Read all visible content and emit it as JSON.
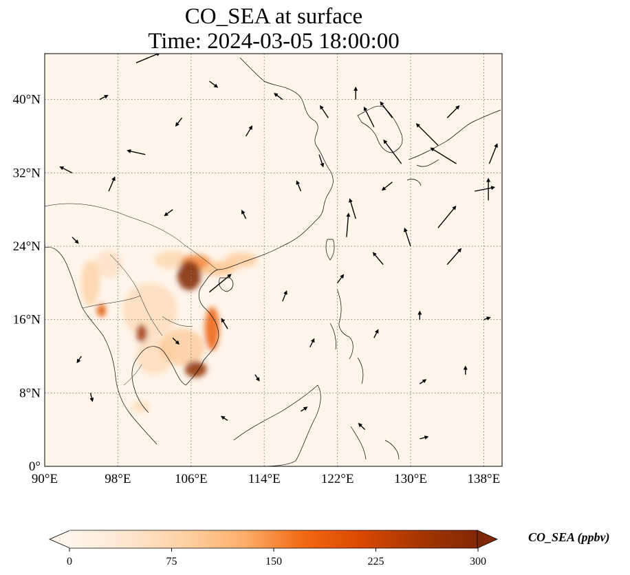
{
  "title": {
    "line1": "CO_SEA at surface",
    "line2": "Time: 2024-03-05 18:00:00"
  },
  "map": {
    "lon_range": [
      90,
      140
    ],
    "lat_range": [
      0,
      45
    ],
    "background": "#fff5ea",
    "coast_color": "#000000",
    "grid_color": "#808080",
    "x_ticks": [
      "90°E",
      "98°E",
      "106°E",
      "114°E",
      "122°E",
      "130°E",
      "138°E"
    ],
    "y_ticks": [
      "0°",
      "8°N",
      "16°N",
      "24°N",
      "32°N",
      "40°N"
    ],
    "x_tick_values": [
      90,
      98,
      106,
      114,
      122,
      130,
      138
    ],
    "y_tick_values": [
      0,
      8,
      16,
      24,
      32,
      40
    ],
    "hotspots": [
      {
        "lon": 105.8,
        "lat": 20.8,
        "rx": 1.3,
        "ry": 1.6,
        "level": 300
      },
      {
        "lon": 106.5,
        "lat": 22.3,
        "rx": 1.6,
        "ry": 0.8,
        "level": 150
      },
      {
        "lon": 108.5,
        "lat": 21.6,
        "rx": 2.5,
        "ry": 0.8,
        "level": 100
      },
      {
        "lon": 111.5,
        "lat": 22.5,
        "rx": 1.8,
        "ry": 0.8,
        "level": 90
      },
      {
        "lon": 106.5,
        "lat": 10.6,
        "rx": 1.2,
        "ry": 0.9,
        "level": 280
      },
      {
        "lon": 108.3,
        "lat": 15.0,
        "rx": 0.8,
        "ry": 2.4,
        "level": 180
      },
      {
        "lon": 105.0,
        "lat": 13.0,
        "rx": 2.5,
        "ry": 2.0,
        "level": 90
      },
      {
        "lon": 100.6,
        "lat": 14.5,
        "rx": 0.6,
        "ry": 1.0,
        "level": 260
      },
      {
        "lon": 96.2,
        "lat": 17.0,
        "rx": 0.5,
        "ry": 0.7,
        "level": 200
      },
      {
        "lon": 95.0,
        "lat": 20.0,
        "rx": 1.0,
        "ry": 2.5,
        "level": 80
      },
      {
        "lon": 101.5,
        "lat": 17.0,
        "rx": 3.0,
        "ry": 3.0,
        "level": 60
      },
      {
        "lon": 102.0,
        "lat": 12.0,
        "rx": 2.0,
        "ry": 2.0,
        "level": 60
      },
      {
        "lon": 104.0,
        "lat": 22.5,
        "rx": 2.0,
        "ry": 1.0,
        "level": 70
      },
      {
        "lon": 100.5,
        "lat": 6.5,
        "rx": 1.0,
        "ry": 0.6,
        "level": 60
      },
      {
        "lon": 97.0,
        "lat": 22.0,
        "rx": 1.5,
        "ry": 1.5,
        "level": 50
      }
    ],
    "wind_vectors": [
      [
        100,
        44,
        2.4,
        1.0
      ],
      [
        108,
        42,
        0.8,
        -0.6
      ],
      [
        124,
        40,
        0.0,
        1.2
      ],
      [
        126,
        37,
        -1.0,
        2.0
      ],
      [
        129,
        33,
        -1.8,
        2.4
      ],
      [
        133,
        35,
        -2.2,
        2.2
      ],
      [
        135,
        33,
        -2.6,
        1.6
      ],
      [
        137,
        30,
        2.0,
        0.4
      ],
      [
        138.6,
        33,
        0.8,
        2.0
      ],
      [
        138.5,
        29,
        0.0,
        2.2
      ],
      [
        124,
        27,
        -0.6,
        2.0
      ],
      [
        123,
        25,
        0.2,
        2.4
      ],
      [
        127,
        22,
        -1.0,
        1.2
      ],
      [
        130,
        24,
        -0.6,
        1.8
      ],
      [
        133,
        26,
        1.8,
        2.2
      ],
      [
        134,
        22,
        1.4,
        1.6
      ],
      [
        108,
        19,
        2.2,
        1.8
      ],
      [
        101,
        34,
        -1.8,
        0.4
      ],
      [
        97,
        30,
        0.6,
        1.4
      ],
      [
        93,
        32,
        -1.2,
        0.6
      ],
      [
        118,
        30,
        -0.4,
        1.0
      ],
      [
        112,
        36,
        0.6,
        1.0
      ],
      [
        116,
        18,
        0.4,
        1.0
      ],
      [
        119,
        13,
        0.4,
        0.8
      ],
      [
        126,
        14,
        0.4,
        0.8
      ],
      [
        131,
        16,
        0.0,
        0.8
      ],
      [
        104,
        14,
        0.6,
        -0.6
      ],
      [
        110,
        15,
        -0.6,
        1.0
      ],
      [
        113,
        10,
        0.4,
        -0.6
      ],
      [
        94,
        12,
        -0.4,
        -0.6
      ],
      [
        128,
        31,
        -1.0,
        -0.8
      ],
      [
        134,
        38,
        1.2,
        1.2
      ],
      [
        120,
        34,
        0.4,
        -1.2
      ],
      [
        116,
        40,
        -0.8,
        0.6
      ],
      [
        105,
        38,
        -0.6,
        -0.8
      ],
      [
        96,
        40,
        0.8,
        0.4
      ],
      [
        122,
        20,
        0.6,
        0.8
      ],
      [
        112,
        27,
        -0.4,
        0.8
      ],
      [
        104,
        28,
        -0.8,
        -0.6
      ],
      [
        93,
        25,
        0.6,
        -0.6
      ],
      [
        95,
        8,
        0.2,
        -0.8
      ],
      [
        110,
        5,
        -0.6,
        0.4
      ],
      [
        118,
        6,
        0.6,
        0.4
      ],
      [
        131,
        9,
        0.6,
        0.4
      ],
      [
        138,
        16,
        0.6,
        0.2
      ],
      [
        136,
        10,
        0.0,
        0.8
      ],
      [
        125,
        4,
        -0.6,
        0.6
      ],
      [
        131,
        3,
        0.8,
        0.2
      ],
      [
        121,
        38,
        -0.8,
        1.2
      ],
      [
        128,
        38,
        -1.2,
        1.6
      ]
    ]
  },
  "colorbar": {
    "min": 0,
    "max": 300,
    "ticks": [
      "0",
      "75",
      "150",
      "225",
      "300"
    ],
    "tick_values": [
      0,
      75,
      150,
      225,
      300
    ],
    "label": "CO_SEA (ppbv)",
    "colors": [
      "#fff5eb",
      "#fee6ce",
      "#fdd0a2",
      "#fdae6b",
      "#f16913",
      "#d94801",
      "#a63603",
      "#7f2704"
    ]
  }
}
